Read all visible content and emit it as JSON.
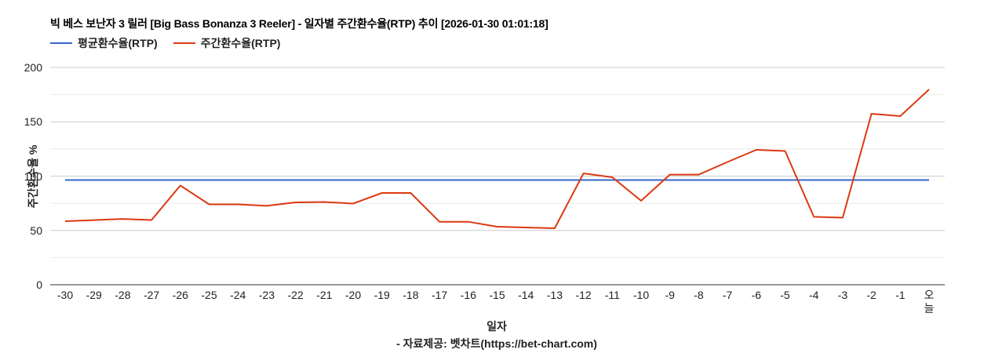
{
  "title": "빅 베스 보난자 3 릴러 [Big Bass Bonanza 3 Reeler] - 일자별 주간환수율(RTP) 추이 [2026-01-30 01:01:18]",
  "legend": [
    {
      "label": "평균환수율(RTP)",
      "color": "#3366cc"
    },
    {
      "label": "주간환수율(RTP)",
      "color": "#dc3912"
    }
  ],
  "axis": {
    "ylabel": "주간환수율 %",
    "xlabel": "일자",
    "credit": "- 자료제공: 벳차트(https://bet-chart.com)"
  },
  "chart_data": {
    "type": "line",
    "title": "빅 베스 보난자 3 릴러 [Big Bass Bonanza 3 Reeler] - 일자별 주간환수율(RTP) 추이 [2026-01-30 01:01:18]",
    "xlabel": "일자",
    "ylabel": "주간환수율 %",
    "ylim": [
      0,
      200
    ],
    "yticks": [
      0,
      50,
      100,
      150,
      200
    ],
    "grid": true,
    "legend_position": "top",
    "categories": [
      "-30",
      "-29",
      "-28",
      "-27",
      "-26",
      "-25",
      "-24",
      "-23",
      "-22",
      "-21",
      "-20",
      "-19",
      "-18",
      "-17",
      "-16",
      "-15",
      "-14",
      "-13",
      "-12",
      "-11",
      "-10",
      "-9",
      "-8",
      "-7",
      "-6",
      "-5",
      "-4",
      "-3",
      "-2",
      "-1",
      "오늘"
    ],
    "series": [
      {
        "name": "평균환수율(RTP)",
        "color": "#3366cc",
        "values": [
          96.4,
          96.4,
          96.4,
          96.4,
          96.4,
          96.4,
          96.4,
          96.4,
          96.4,
          96.4,
          96.4,
          96.4,
          96.4,
          96.4,
          96.4,
          96.4,
          96.4,
          96.4,
          96.4,
          96.4,
          96.4,
          96.4,
          96.4,
          96.4,
          96.4,
          96.4,
          96.4,
          96.4,
          96.4,
          96.4,
          96.4
        ]
      },
      {
        "name": "주간환수율(RTP)",
        "color": "#dc3912",
        "values": [
          58.5,
          59.5,
          60.6,
          59.6,
          91.3,
          74.0,
          74.0,
          72.6,
          75.8,
          76.2,
          74.7,
          84.5,
          84.5,
          58.0,
          58.0,
          53.4,
          52.7,
          52.0,
          102.5,
          98.9,
          77.3,
          101.4,
          101.4,
          113.0,
          124.2,
          123.1,
          62.5,
          61.7,
          157.4,
          155.2,
          179.8
        ]
      }
    ]
  }
}
